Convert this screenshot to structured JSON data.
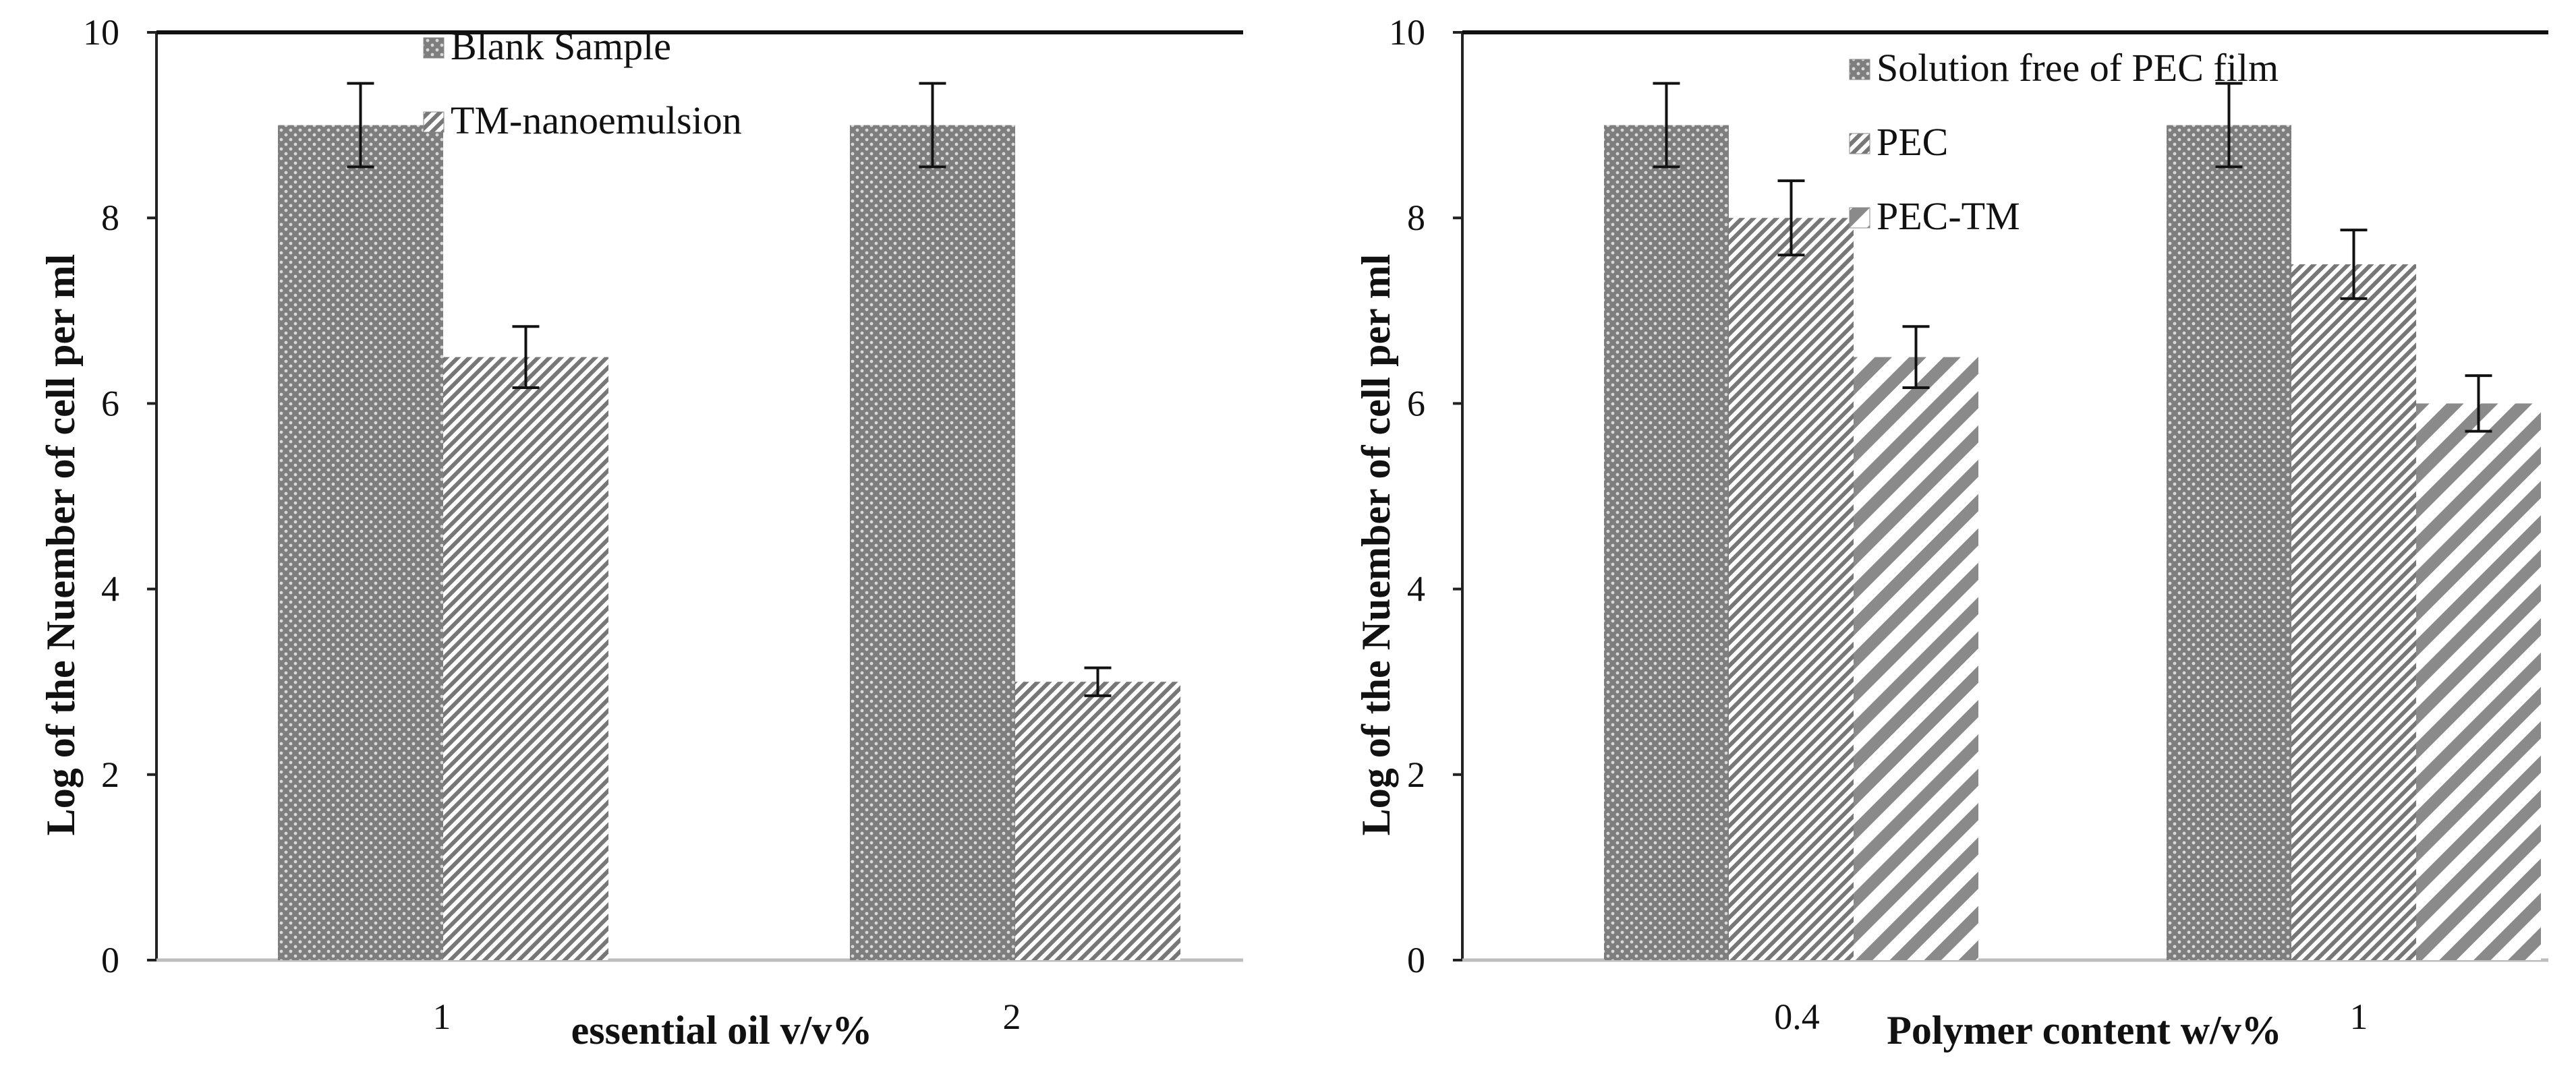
{
  "chart_data": [
    {
      "type": "bar",
      "ylabel": "Log of the Nuember of cell per ml",
      "xlabel": "essential oil v/v%",
      "categories": [
        "1",
        "2"
      ],
      "ylim": [
        0,
        10
      ],
      "yticks": [
        0,
        2,
        4,
        6,
        8,
        10
      ],
      "legend_position": "top-center",
      "series": [
        {
          "name": "Blank Sample",
          "values": [
            9,
            9
          ],
          "errors": [
            0.45,
            0.45
          ],
          "pattern": "dots"
        },
        {
          "name": "TM-nanoemulsion",
          "values": [
            6.5,
            3
          ],
          "errors": [
            0.33,
            0.15
          ],
          "pattern": "fine-diagonal"
        }
      ]
    },
    {
      "type": "bar",
      "ylabel": "Log of the Nuember of cell per ml",
      "xlabel": "Polymer content w/v%",
      "categories": [
        "0.4",
        "1"
      ],
      "ylim": [
        0,
        10
      ],
      "yticks": [
        0,
        2,
        4,
        6,
        8,
        10
      ],
      "legend_position": "top-right",
      "series": [
        {
          "name": "Solution free of PEC film",
          "values": [
            9,
            9
          ],
          "errors": [
            0.45,
            0.45
          ],
          "pattern": "dots"
        },
        {
          "name": "PEC",
          "values": [
            8,
            7.5
          ],
          "errors": [
            0.4,
            0.37
          ],
          "pattern": "fine-diagonal"
        },
        {
          "name": "PEC-TM",
          "values": [
            6.5,
            6
          ],
          "errors": [
            0.33,
            0.3
          ],
          "pattern": "wide-diagonal"
        }
      ]
    }
  ]
}
